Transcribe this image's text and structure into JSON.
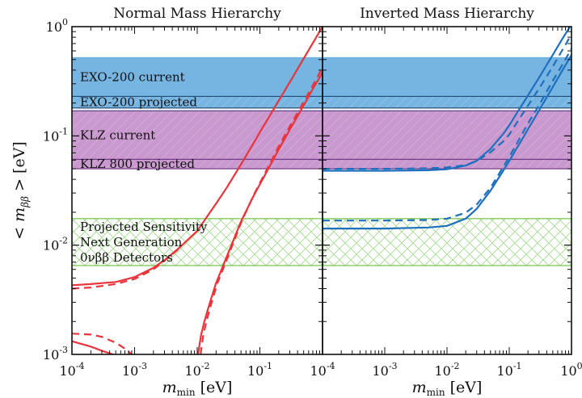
{
  "chart_data": [
    {
      "type": "line",
      "title": "Normal Mass Hierarchy",
      "xlabel": "m_min [eV]",
      "ylabel": "< m_ββ > [eV]",
      "x_scale": "log",
      "y_scale": "log",
      "xlim": [
        0.0001,
        1
      ],
      "ylim": [
        0.001,
        1
      ],
      "x_ticks": [
        {
          "value": 0.0001,
          "base": "10",
          "exp": "-4"
        },
        {
          "value": 0.001,
          "base": "10",
          "exp": "-3"
        },
        {
          "value": 0.01,
          "base": "10",
          "exp": "-2"
        },
        {
          "value": 0.1,
          "base": "10",
          "exp": "-1"
        }
      ],
      "y_ticks": [
        {
          "value": 0.001,
          "base": "10",
          "exp": "-3"
        },
        {
          "value": 0.01,
          "base": "10",
          "exp": "-2"
        },
        {
          "value": 0.1,
          "base": "10",
          "exp": "-1"
        },
        {
          "value": 1,
          "base": "10",
          "exp": "0"
        }
      ],
      "series": [
        {
          "style": "solid",
          "color": "#e8343a",
          "x": [
            0.0001,
            0.0002,
            0.0005,
            0.001,
            0.002,
            0.003,
            0.005,
            0.01,
            0.02,
            0.03,
            0.05,
            0.07,
            0.1,
            0.2,
            0.3,
            0.5,
            1.0
          ],
          "y": [
            0.0043,
            0.0044,
            0.0046,
            0.0051,
            0.0062,
            0.0073,
            0.0093,
            0.0135,
            0.024,
            0.034,
            0.055,
            0.076,
            0.108,
            0.21,
            0.31,
            0.51,
            1.0
          ]
        },
        {
          "style": "dashed",
          "color": "#e8343a",
          "x": [
            0.0001,
            0.0002,
            0.0005,
            0.001,
            0.002,
            0.003,
            0.005
          ],
          "y": [
            0.004,
            0.0041,
            0.0044,
            0.0049,
            0.006,
            0.0072,
            0.0092
          ]
        },
        {
          "style": "solid",
          "color": "#e8343a",
          "x": [
            0.0103,
            0.0115,
            0.013,
            0.016,
            0.02,
            0.03,
            0.05,
            0.08,
            0.1,
            0.2,
            0.3,
            0.5,
            0.7,
            1.0
          ],
          "y": [
            0.001,
            0.0015,
            0.002,
            0.003,
            0.0045,
            0.008,
            0.0165,
            0.0285,
            0.036,
            0.075,
            0.114,
            0.19,
            0.27,
            0.38
          ]
        },
        {
          "style": "dashed",
          "color": "#e8343a",
          "x": [
            0.0113,
            0.0125,
            0.014,
            0.017,
            0.021,
            0.03,
            0.05,
            0.08,
            0.1,
            0.2,
            0.3,
            0.5,
            0.7,
            1.0
          ],
          "y": [
            0.001,
            0.0015,
            0.002,
            0.003,
            0.0045,
            0.0075,
            0.016,
            0.029,
            0.037,
            0.08,
            0.122,
            0.205,
            0.29,
            0.42
          ]
        },
        {
          "style": "solid",
          "color": "#e8343a",
          "x": [
            0.0001,
            0.0002,
            0.0003,
            0.0005,
            0.0007
          ],
          "y": [
            0.00132,
            0.00118,
            0.00108,
            0.00098,
            0.00091
          ]
        },
        {
          "style": "dashed",
          "color": "#e8343a",
          "x": [
            0.0001,
            0.0002,
            0.0003,
            0.0005,
            0.0007,
            0.0009
          ],
          "y": [
            0.00155,
            0.00152,
            0.00145,
            0.00128,
            0.00113,
            0.001
          ]
        }
      ]
    },
    {
      "type": "line",
      "title": "Inverted Mass Hierarchy",
      "xlabel": "m_min [eV]",
      "ylabel": "",
      "x_scale": "log",
      "y_scale": "log",
      "xlim": [
        0.0001,
        1
      ],
      "ylim": [
        0.001,
        1
      ],
      "x_ticks": [
        {
          "value": 0.0001,
          "base": "10",
          "exp": "-4"
        },
        {
          "value": 0.001,
          "base": "10",
          "exp": "-3"
        },
        {
          "value": 0.01,
          "base": "10",
          "exp": "-2"
        },
        {
          "value": 0.1,
          "base": "10",
          "exp": "-1"
        },
        {
          "value": 1,
          "base": "10",
          "exp": "0"
        }
      ],
      "series": [
        {
          "style": "solid",
          "color": "#1f6fbf",
          "x": [
            0.0001,
            0.001,
            0.005,
            0.01,
            0.02,
            0.03,
            0.05,
            0.08,
            0.1,
            0.2,
            0.3,
            0.5,
            0.7,
            1.0
          ],
          "y": [
            0.048,
            0.048,
            0.0485,
            0.0495,
            0.0535,
            0.059,
            0.076,
            0.104,
            0.125,
            0.235,
            0.34,
            0.55,
            0.76,
            1.05
          ]
        },
        {
          "style": "dashed",
          "color": "#1f6fbf",
          "x": [
            0.0001,
            0.001,
            0.005,
            0.01,
            0.02,
            0.03,
            0.05,
            0.08,
            0.1,
            0.2,
            0.3,
            0.5,
            0.7,
            1.0
          ],
          "y": [
            0.05,
            0.05,
            0.0505,
            0.0515,
            0.054,
            0.059,
            0.071,
            0.089,
            0.103,
            0.19,
            0.27,
            0.43,
            0.6,
            0.85
          ]
        },
        {
          "style": "solid",
          "color": "#1f6fbf",
          "x": [
            0.0001,
            0.001,
            0.005,
            0.01,
            0.02,
            0.03,
            0.05,
            0.08,
            0.1,
            0.2,
            0.3,
            0.5,
            0.7,
            1.0
          ],
          "y": [
            0.0142,
            0.0142,
            0.0145,
            0.015,
            0.0175,
            0.0215,
            0.0315,
            0.048,
            0.059,
            0.115,
            0.17,
            0.28,
            0.39,
            0.55
          ]
        },
        {
          "style": "dashed",
          "color": "#1f6fbf",
          "x": [
            0.0001,
            0.001,
            0.005,
            0.01,
            0.02,
            0.03,
            0.05,
            0.08,
            0.1,
            0.2,
            0.3,
            0.5,
            0.7,
            1.0
          ],
          "y": [
            0.0168,
            0.0168,
            0.017,
            0.0175,
            0.0198,
            0.0235,
            0.0335,
            0.052,
            0.064,
            0.13,
            0.19,
            0.32,
            0.44,
            0.63
          ]
        }
      ]
    }
  ],
  "bands": [
    {
      "label": "EXO-200 current",
      "ymin": 0.23,
      "ymax": 0.52,
      "fill": "#6aaede",
      "edge": "#6aaede"
    },
    {
      "label": "EXO-200 projected",
      "ymin": 0.18,
      "ymax": 0.23,
      "fill": "#6aaede",
      "edge": "#1a3f6a",
      "hatch": true
    },
    {
      "label": "KLZ current",
      "ymin": 0.061,
      "ymax": 0.17,
      "fill": "#c48fca",
      "edge": "#4a3580",
      "hatch": true
    },
    {
      "label": "KLZ 800 projected",
      "ymin": 0.05,
      "ymax": 0.061,
      "fill": "#c48fca",
      "edge": "#6a2f7a",
      "hatch": true
    },
    {
      "label": "Projected Sensitivity Next Generation 0νββ Detectors",
      "ymin": 0.0065,
      "ymax": 0.0175,
      "fill": "none",
      "edge": "#6abf3a",
      "crosshatch": true
    }
  ],
  "band_texts": [
    {
      "band": 0,
      "lines": [
        "EXO-200 current"
      ]
    },
    {
      "band": 1,
      "lines": [
        "EXO-200 projected"
      ]
    },
    {
      "band": 2,
      "lines": [
        "KLZ current"
      ]
    },
    {
      "band": 3,
      "lines": [
        "KLZ 800 projected"
      ]
    },
    {
      "band": 4,
      "lines": [
        "Projected Sensitivity",
        "Next Generation",
        "0νββ Detectors"
      ]
    }
  ],
  "ylabel_parts": {
    "open": "< ",
    "m": "m",
    "sub": "ββ",
    "close": " > [eV]"
  },
  "xlabel_parts": {
    "m": "m",
    "sub": "min",
    "unit": " [eV]"
  }
}
